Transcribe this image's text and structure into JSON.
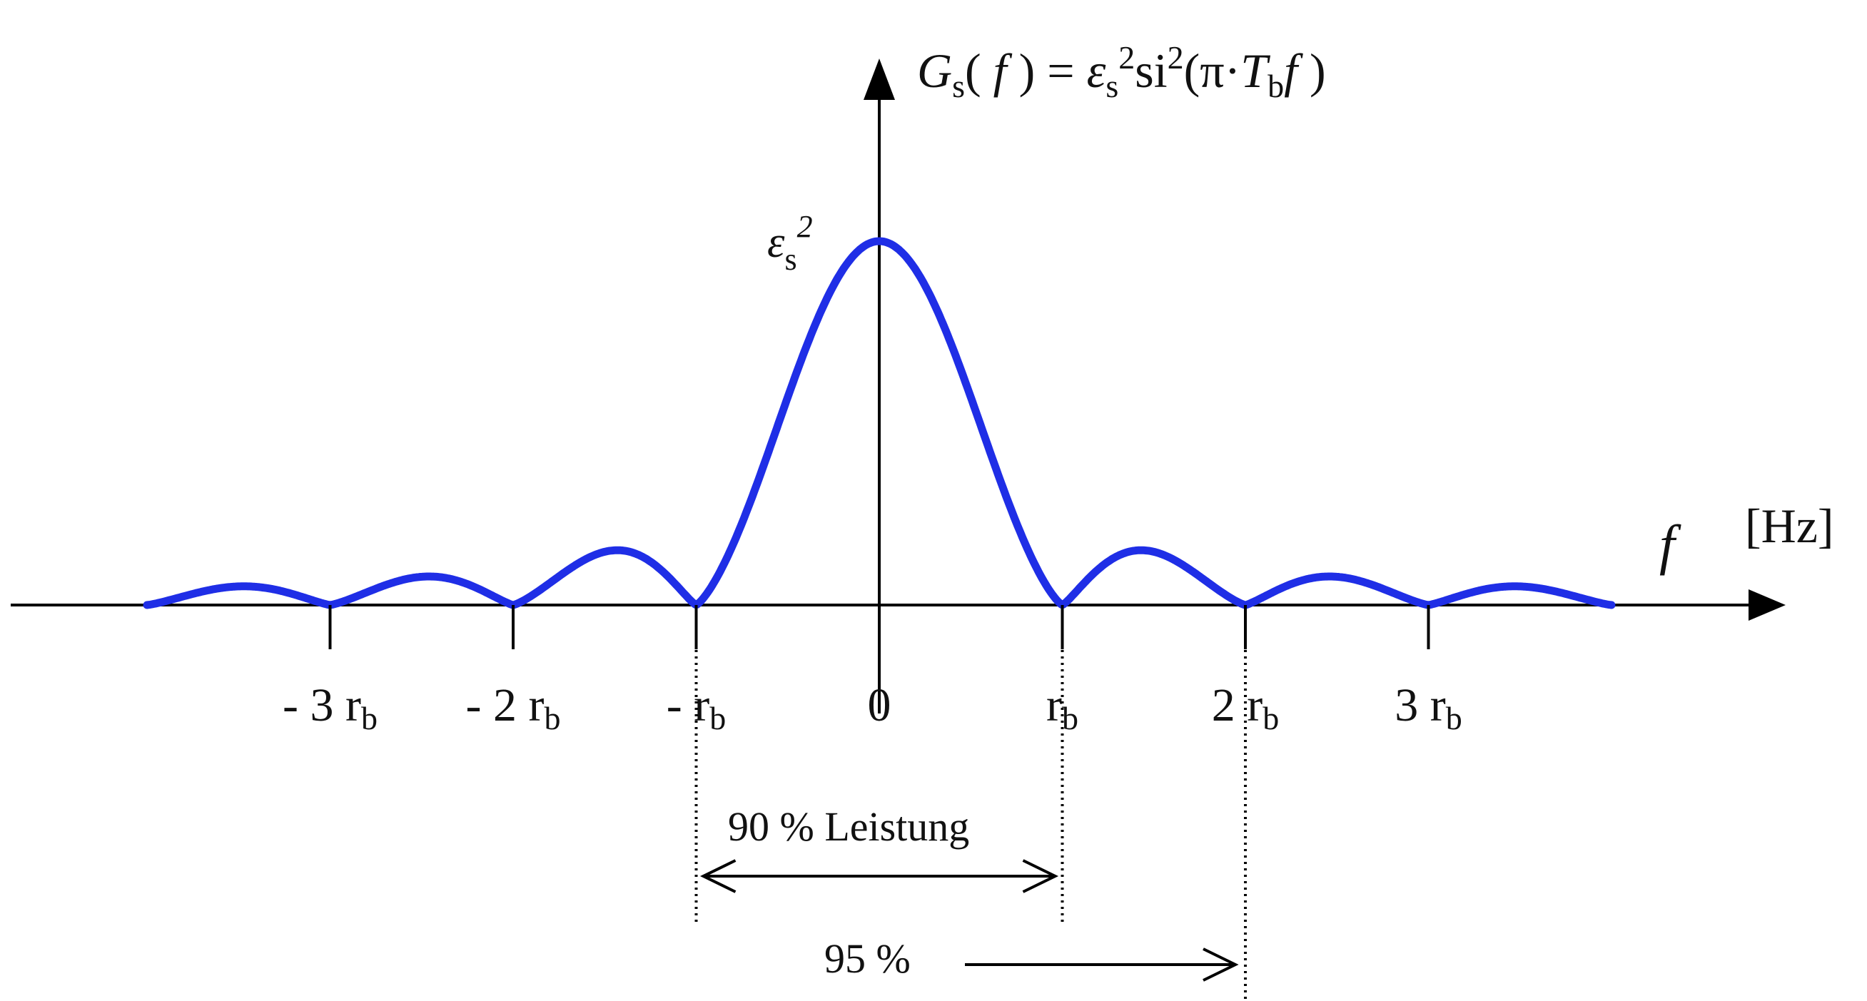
{
  "chart_data": {
    "type": "line",
    "title": "",
    "formula": {
      "G": "G",
      "sub_s": "s",
      "open_f": "( ",
      "f": "f",
      "close_eq": " ) = ",
      "eps": "ε",
      "sub_s2": "s",
      "sup_2a": "2",
      "si": "si",
      "sup_2b": "2",
      "open_pi": "(π·",
      "T": "T",
      "sub_b": "b",
      "f2": "f",
      "close": " )"
    },
    "peak_label": {
      "eps": "ε",
      "sub": "s",
      "sup": "2"
    },
    "x_axis": {
      "symbol": "f",
      "unit": "[Hz]"
    },
    "x_unit_symbol": "r_b",
    "xlim": [
      -4.15,
      4.0
    ],
    "ylim": [
      0,
      1
    ],
    "grid": false,
    "series": [
      {
        "function": "sinc_squared",
        "color": "#1f2ee6",
        "x_range": [
          -4.0,
          4.0
        ],
        "peak": 1.0
      }
    ],
    "ticks": [
      {
        "x": -3,
        "prefix": "- 3 ",
        "r": "r",
        "sub": "b"
      },
      {
        "x": -2,
        "prefix": "- 2 ",
        "r": "r",
        "sub": "b"
      },
      {
        "x": -1,
        "prefix": "- ",
        "r": "r",
        "sub": "b"
      },
      {
        "x": 0,
        "prefix": "0",
        "r": "",
        "sub": ""
      },
      {
        "x": 1,
        "prefix": "",
        "r": "r",
        "sub": "b"
      },
      {
        "x": 2,
        "prefix": "2 ",
        "r": "r",
        "sub": "b"
      },
      {
        "x": 3,
        "prefix": "3 ",
        "r": "r",
        "sub": "b"
      }
    ],
    "annotations": [
      {
        "label": "90 % Leistung",
        "from": -1,
        "to": 1,
        "arrow": "both"
      },
      {
        "label": "95 %",
        "to": 2,
        "arrow": "right"
      }
    ]
  }
}
